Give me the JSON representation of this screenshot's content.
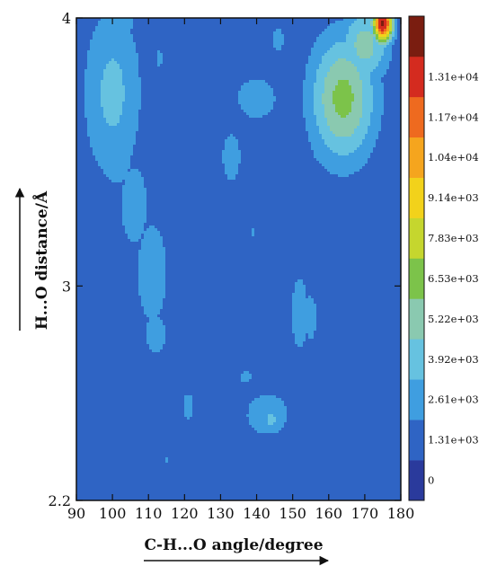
{
  "chart_data": {
    "type": "heatmap",
    "title": "",
    "xlabel": "C-H...O angle/degree",
    "ylabel": "H...O distance/Å",
    "xlim": [
      90,
      180
    ],
    "ylim": [
      2.2,
      4
    ],
    "x_ticks": [
      "90",
      "100",
      "110",
      "120",
      "130",
      "140",
      "150",
      "160",
      "170",
      "180"
    ],
    "y_ticks": [
      {
        "value": 2.2,
        "label": "2.2"
      },
      {
        "value": 3,
        "label": "3"
      },
      {
        "value": 4,
        "label": "4"
      }
    ],
    "colorbar": {
      "placement": "right",
      "levels": [
        "0",
        "1.31e+03",
        "2.61e+03",
        "3.92e+03",
        "5.22e+03",
        "6.53e+03",
        "7.83e+03",
        "9.14e+03",
        "1.04e+04",
        "1.17e+04",
        "1.31e+04"
      ],
      "colors": [
        "#2a3a9c",
        "#2f64c4",
        "#3f9ee0",
        "#66c2e0",
        "#8ac9b0",
        "#7cc34a",
        "#c5d62e",
        "#f2d21b",
        "#f5a51e",
        "#ee6a1f",
        "#d42b1f",
        "#7a1d10"
      ]
    },
    "blobs": [
      {
        "x": 100,
        "y": 3.72,
        "rx": 6.0,
        "ry": 0.24,
        "v": 3000
      },
      {
        "x": 101,
        "y": 3.5,
        "rx": 4.5,
        "ry": 0.12,
        "v": 2100
      },
      {
        "x": 106,
        "y": 3.3,
        "rx": 4.0,
        "ry": 0.16,
        "v": 1900
      },
      {
        "x": 111,
        "y": 3.05,
        "rx": 5.0,
        "ry": 0.22,
        "v": 1800
      },
      {
        "x": 112,
        "y": 2.82,
        "rx": 4.0,
        "ry": 0.1,
        "v": 1650
      },
      {
        "x": 103,
        "y": 3.98,
        "rx": 5.5,
        "ry": 0.08,
        "v": 1500
      },
      {
        "x": 113,
        "y": 3.85,
        "rx": 1.6,
        "ry": 0.06,
        "v": 1500
      },
      {
        "x": 121,
        "y": 2.55,
        "rx": 2.8,
        "ry": 0.09,
        "v": 1500
      },
      {
        "x": 131,
        "y": 3.97,
        "rx": 4.5,
        "ry": 0.05,
        "v": 800
      },
      {
        "x": 140,
        "y": 3.7,
        "rx": 7.0,
        "ry": 0.1,
        "v": 1700
      },
      {
        "x": 133,
        "y": 3.48,
        "rx": 4.5,
        "ry": 0.16,
        "v": 1500
      },
      {
        "x": 146,
        "y": 3.92,
        "rx": 4.0,
        "ry": 0.12,
        "v": 1400
      },
      {
        "x": 139,
        "y": 3.2,
        "rx": 2.0,
        "ry": 0.05,
        "v": 1400
      },
      {
        "x": 164,
        "y": 3.7,
        "rx": 6.5,
        "ry": 0.17,
        "v": 5700
      },
      {
        "x": 170,
        "y": 3.9,
        "rx": 5.0,
        "ry": 0.1,
        "v": 4500
      },
      {
        "x": 175,
        "y": 3.98,
        "rx": 2.0,
        "ry": 0.05,
        "v": 13500
      },
      {
        "x": 160,
        "y": 3.55,
        "rx": 7.0,
        "ry": 0.15,
        "v": 1700
      },
      {
        "x": 152,
        "y": 2.9,
        "rx": 3.0,
        "ry": 0.18,
        "v": 1700
      },
      {
        "x": 155,
        "y": 2.88,
        "rx": 1.5,
        "ry": 0.08,
        "v": 2200
      },
      {
        "x": 143,
        "y": 2.52,
        "rx": 6.0,
        "ry": 0.08,
        "v": 2000
      },
      {
        "x": 144,
        "y": 2.5,
        "rx": 2.8,
        "ry": 0.04,
        "v": 2900
      },
      {
        "x": 137,
        "y": 2.66,
        "rx": 4.0,
        "ry": 0.06,
        "v": 1400
      },
      {
        "x": 115,
        "y": 2.35,
        "rx": 0.9,
        "ry": 0.025,
        "v": 1450
      }
    ]
  }
}
